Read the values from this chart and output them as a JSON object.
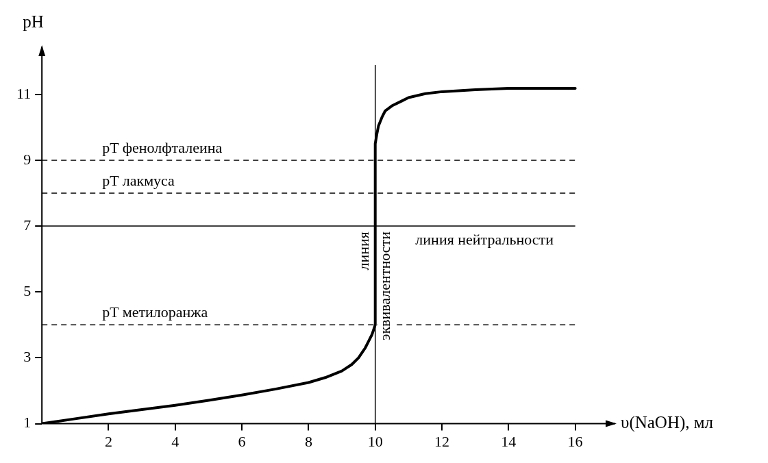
{
  "chart_data": {
    "type": "line",
    "xlabel": "υ(NaOH), мл",
    "ylabel": "pH",
    "series": [
      {
        "color": "#000000",
        "x": [
          0,
          1,
          2,
          3,
          4,
          5,
          6,
          7,
          8,
          8.5,
          9,
          9.3,
          9.5,
          9.7,
          9.8,
          9.9,
          9.95,
          10,
          10,
          10.05,
          10.1,
          10.2,
          10.3,
          10.5,
          10.8,
          11,
          11.5,
          12,
          13,
          14,
          15,
          16
        ],
        "values": [
          1,
          1.15,
          1.3,
          1.43,
          1.56,
          1.71,
          1.87,
          2.05,
          2.25,
          2.4,
          2.6,
          2.8,
          3.0,
          3.3,
          3.5,
          3.7,
          3.85,
          4,
          9.5,
          9.8,
          10.05,
          10.3,
          10.5,
          10.65,
          10.8,
          10.9,
          11.02,
          11.08,
          11.14,
          11.18,
          11.18,
          11.18
        ]
      }
    ],
    "xlim": [
      0,
      17.2
    ],
    "ylim": [
      1,
      12.45
    ],
    "xticks": [
      2,
      4,
      6,
      8,
      10,
      12,
      14,
      16
    ],
    "yticks": [
      1,
      3,
      5,
      7,
      9,
      11
    ],
    "ref_lines": [
      {
        "axis": "y",
        "value": 9,
        "label": "pT фенолфталеина",
        "line_style": "dashed"
      },
      {
        "axis": "y",
        "value": 8,
        "label": "pT лакмуса",
        "line_style": "dashed"
      },
      {
        "axis": "y",
        "value": 4,
        "label": "pT метилоранжа",
        "line_style": "dashed"
      },
      {
        "axis": "y",
        "value": 7,
        "label": "линия нейтральности",
        "line_style": "solid"
      },
      {
        "axis": "x",
        "value": 10,
        "label": "линия эквивалентности",
        "line_style": "solid"
      }
    ],
    "grid": false,
    "legend": false,
    "marker": "none",
    "line_style": "solid"
  }
}
